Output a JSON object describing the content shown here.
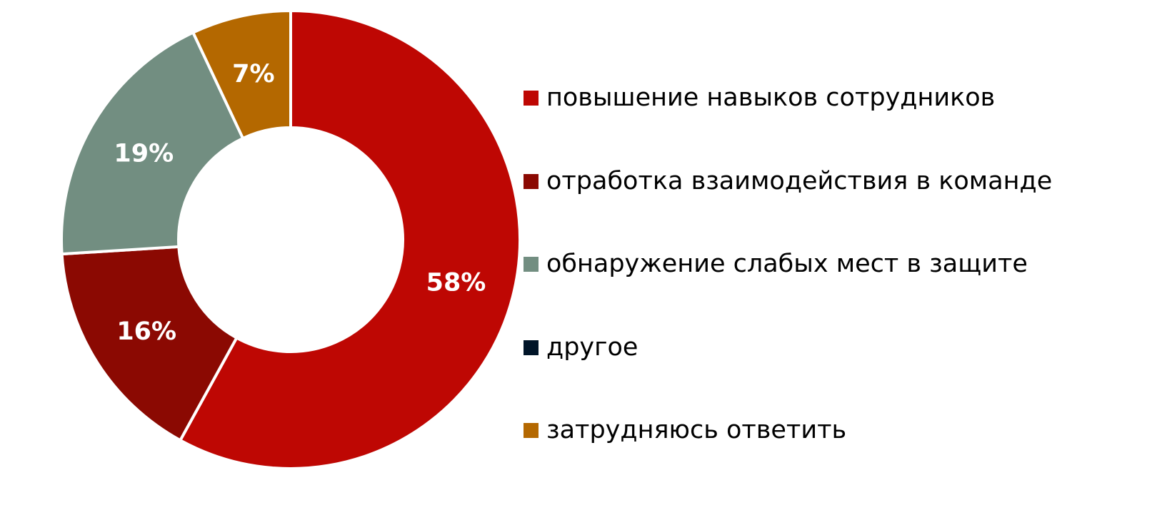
{
  "chart_data": {
    "type": "pie",
    "donut": true,
    "categories": [
      "повышение навыков сотрудников",
      "отработка взаимодействия в команде",
      "обнаружение слабых мест в защите",
      "другое",
      "затрудняюсь ответить"
    ],
    "values": [
      58,
      16,
      19,
      0,
      7
    ],
    "labels": [
      "58%",
      "16%",
      "19%",
      "",
      "7%"
    ],
    "colors": [
      "#BE0703",
      "#8B0902",
      "#728E81",
      "#001428",
      "#B46800"
    ],
    "legend_position": "right",
    "start_angle": "top",
    "direction": "clockwise"
  }
}
